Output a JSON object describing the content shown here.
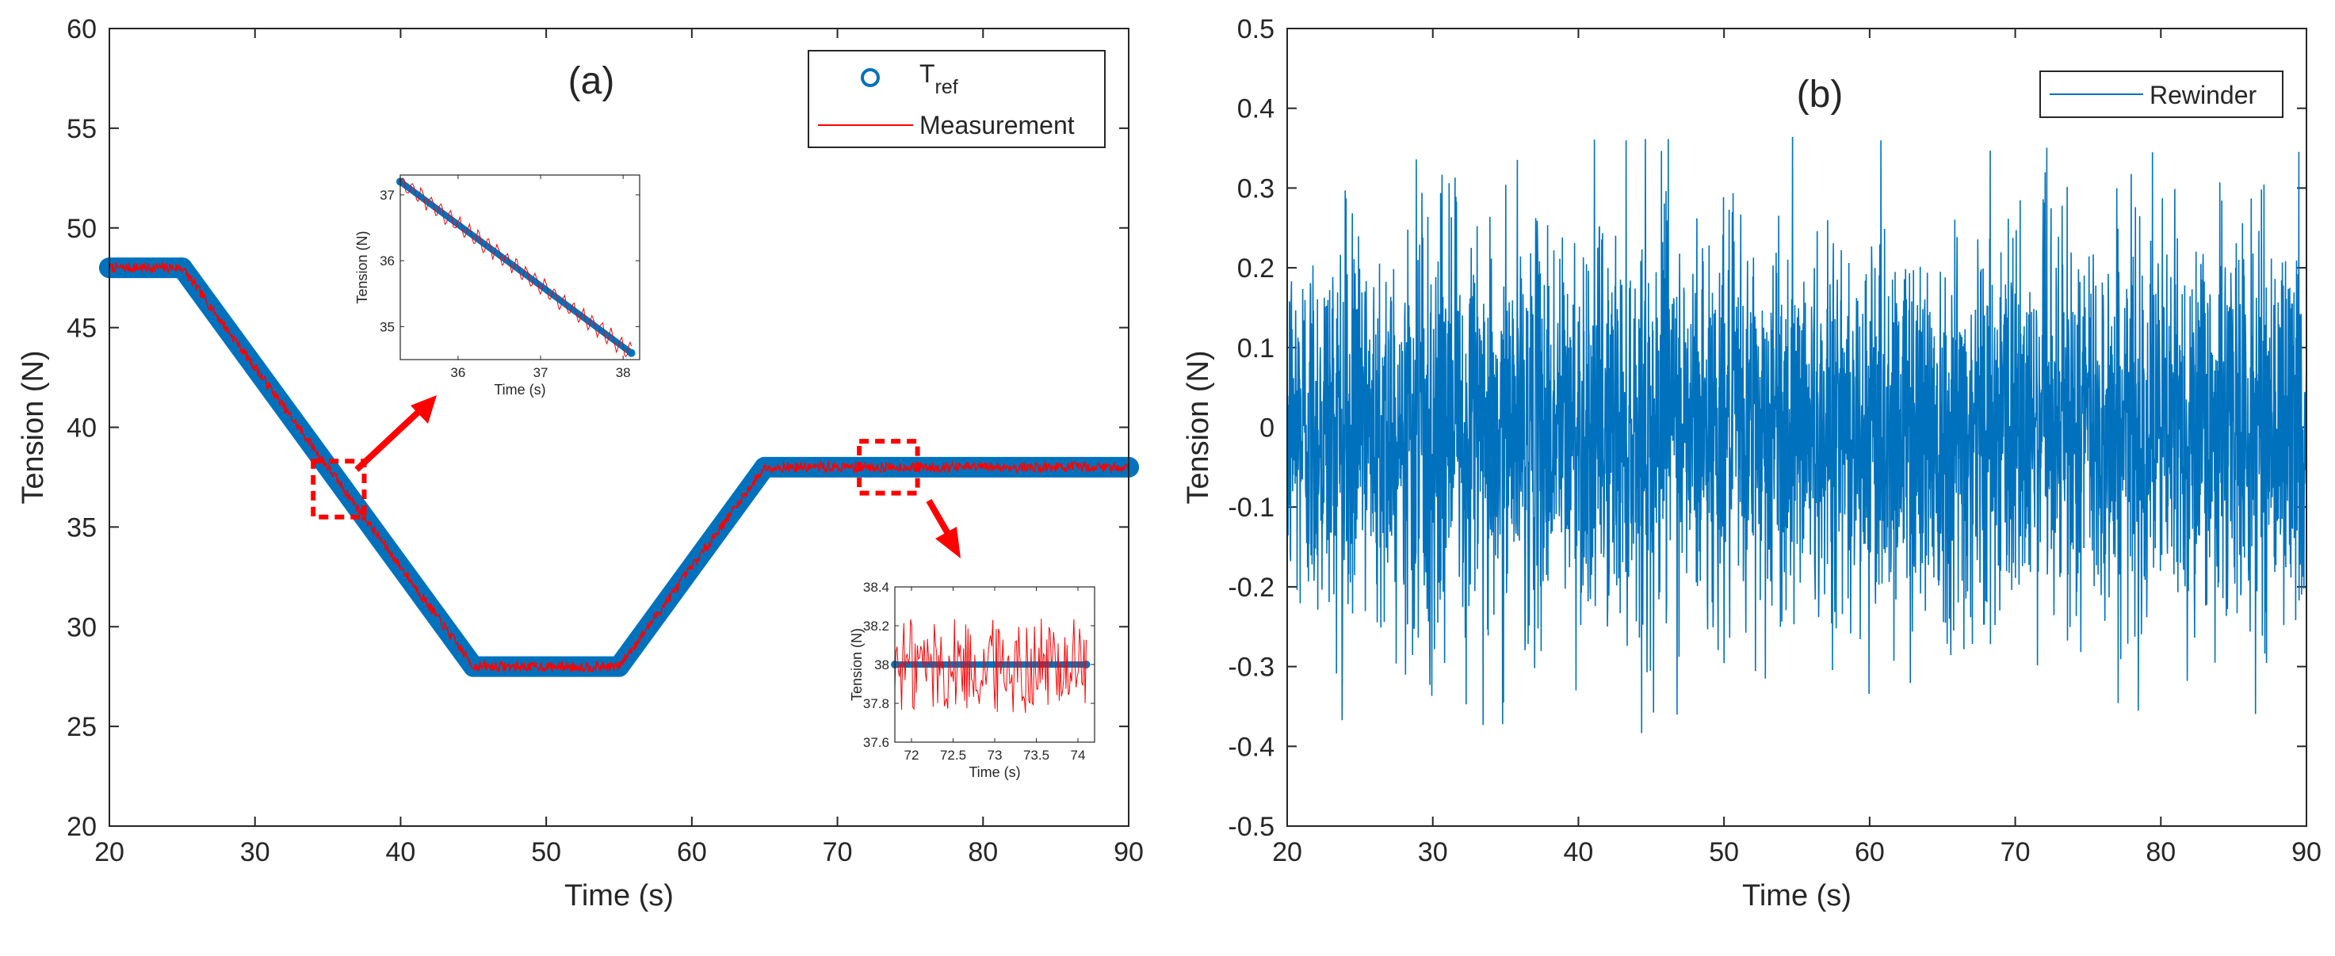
{
  "chart_data": [
    {
      "id": "a",
      "type": "line",
      "panel_label": "(a)",
      "xlabel": "Time (s)",
      "ylabel": "Tension (N)",
      "xlim": [
        20,
        90
      ],
      "ylim": [
        20,
        60
      ],
      "xticks": [
        20,
        30,
        40,
        50,
        60,
        70,
        80,
        90
      ],
      "yticks": [
        20,
        25,
        30,
        35,
        40,
        45,
        50,
        55,
        60
      ],
      "legend": {
        "position": "top-right",
        "entries": [
          {
            "base": "T",
            "sub": "ref",
            "marker": "circle"
          },
          {
            "label": "Measurement",
            "marker": "line"
          }
        ]
      },
      "series": [
        {
          "name": "Tref",
          "color": "#0072BD",
          "style": "markers",
          "x": [
            20,
            25,
            45,
            55,
            65,
            90
          ],
          "y": [
            48,
            48,
            28,
            28,
            38,
            38
          ]
        },
        {
          "name": "Measurement",
          "color": "#FF0000",
          "style": "line",
          "noise_amplitude": 0.25,
          "x": [
            20,
            25,
            45,
            55,
            65,
            90
          ],
          "y": [
            48,
            48,
            28,
            28,
            38,
            38
          ]
        }
      ],
      "highlight_boxes": [
        {
          "x_range": [
            34,
            37.5
          ],
          "y_range": [
            35.5,
            38.3
          ]
        },
        {
          "x_range": [
            71.5,
            75.5
          ],
          "y_range": [
            36.7,
            39.3
          ]
        }
      ],
      "insets": [
        {
          "id": "inset1",
          "xlabel": "Time (s)",
          "ylabel": "Tension (N)",
          "xlim": [
            35.3,
            38.2
          ],
          "ylim": [
            34.5,
            37.3
          ],
          "xticks": [
            36,
            37,
            38
          ],
          "yticks": [
            35,
            36,
            37
          ],
          "ref": {
            "x": [
              35.3,
              38.1
            ],
            "y": [
              37.2,
              34.6
            ]
          },
          "noise_amplitude": 0.15
        },
        {
          "id": "inset2",
          "xlabel": "Time (s)",
          "ylabel": "Tension (N)",
          "xlim": [
            71.8,
            74.2
          ],
          "ylim": [
            37.6,
            38.4
          ],
          "xticks": [
            72,
            72.5,
            73,
            73.5,
            74
          ],
          "yticks": [
            37.6,
            37.8,
            38,
            38.2,
            38.4
          ],
          "ref": {
            "x": [
              71.8,
              74.1
            ],
            "y": [
              38,
              38
            ]
          },
          "noise_amplitude": 0.25
        }
      ]
    },
    {
      "id": "b",
      "type": "line",
      "panel_label": "(b)",
      "xlabel": "Time (s)",
      "ylabel": "Tension (N)",
      "xlim": [
        20,
        90
      ],
      "ylim": [
        -0.5,
        0.5
      ],
      "xticks": [
        20,
        30,
        40,
        50,
        60,
        70,
        80,
        90
      ],
      "yticks": [
        -0.5,
        -0.4,
        -0.3,
        -0.2,
        -0.1,
        0,
        0.1,
        0.2,
        0.3,
        0.4,
        0.5
      ],
      "legend": {
        "position": "top-right",
        "entries": [
          {
            "label": "Rewinder",
            "marker": "line"
          }
        ]
      },
      "series": [
        {
          "name": "Rewinder",
          "color": "#0072BD",
          "style": "line",
          "noise_std": 0.12,
          "min": -0.385,
          "max": 0.365
        }
      ]
    }
  ]
}
